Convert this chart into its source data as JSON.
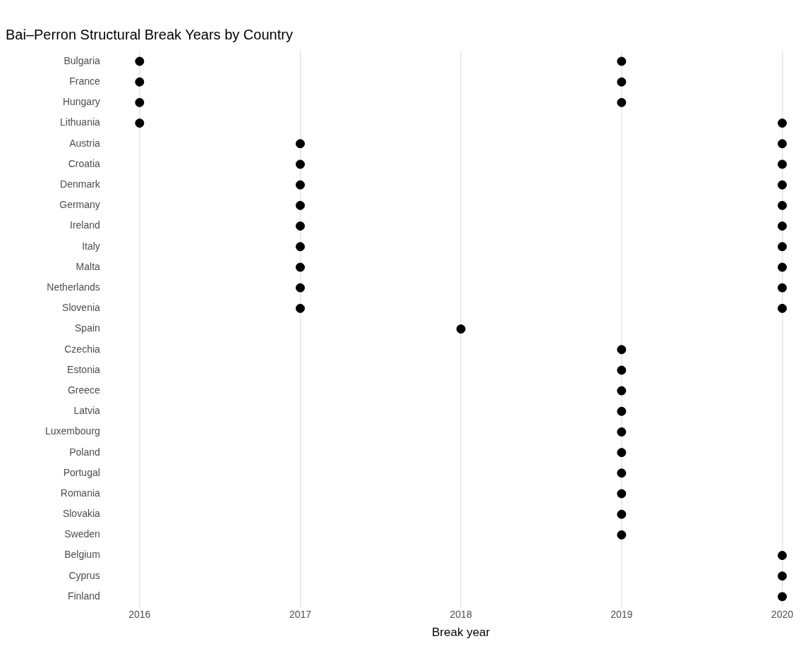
{
  "chart_data": {
    "type": "scatter",
    "title": "Bai–Perron Structural Break Years by Country",
    "xlabel": "Break year",
    "orientation": "horizontal",
    "marker": "circle",
    "grid": "x",
    "categories": [
      "Bulgaria",
      "France",
      "Hungary",
      "Lithuania",
      "Austria",
      "Croatia",
      "Denmark",
      "Germany",
      "Ireland",
      "Italy",
      "Malta",
      "Netherlands",
      "Slovenia",
      "Spain",
      "Czechia",
      "Estonia",
      "Greece",
      "Latvia",
      "Luxembourg",
      "Poland",
      "Portugal",
      "Romania",
      "Slovakia",
      "Sweden",
      "Belgium",
      "Cyprus",
      "Finland"
    ],
    "series": [
      {
        "color": "#000000",
        "values": [
          2016,
          2016,
          2016,
          2016,
          2017,
          2017,
          2017,
          2017,
          2017,
          2017,
          2017,
          2017,
          2017,
          2018,
          2019,
          2019,
          2019,
          2019,
          2019,
          2019,
          2019,
          2019,
          2019,
          2019,
          2020,
          2020,
          2020
        ]
      },
      {
        "color": "#000000",
        "values": [
          2019,
          2019,
          2019,
          2020,
          2020,
          2020,
          2020,
          2020,
          2020,
          2020,
          2020,
          2020,
          2020,
          null,
          null,
          null,
          null,
          null,
          null,
          null,
          null,
          null,
          null,
          null,
          null,
          null,
          null
        ]
      }
    ],
    "xlim": [
      2016,
      2020
    ],
    "xticks": [
      2016,
      2017,
      2018,
      2019,
      2020
    ]
  }
}
